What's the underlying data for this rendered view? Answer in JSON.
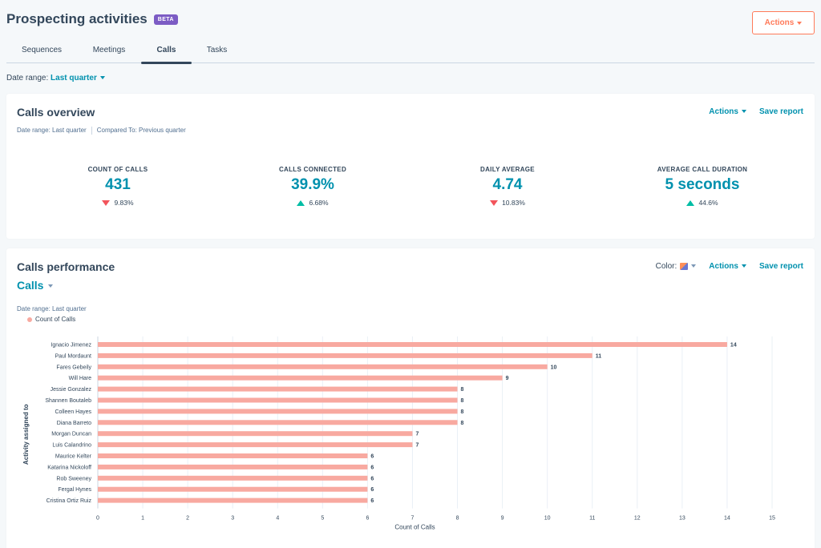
{
  "page": {
    "title": "Prospecting activities",
    "badge": "BETA",
    "actions_label": "Actions",
    "tabs": [
      "Sequences",
      "Meetings",
      "Calls",
      "Tasks"
    ],
    "active_tab": "Calls",
    "date_range_label": "Date range:",
    "date_range_value": "Last quarter"
  },
  "overview": {
    "title": "Calls overview",
    "actions_label": "Actions",
    "save_label": "Save report",
    "meta_range": "Date range: Last quarter",
    "meta_compare": "Compared To: Previous quarter",
    "kpis": [
      {
        "label": "COUNT OF CALLS",
        "value": "431",
        "change": "9.83%",
        "direction": "down"
      },
      {
        "label": "CALLS CONNECTED",
        "value": "39.9%",
        "change": "6.68%",
        "direction": "up"
      },
      {
        "label": "DAILY AVERAGE",
        "value": "4.74",
        "change": "10.83%",
        "direction": "down"
      },
      {
        "label": "AVERAGE CALL DURATION",
        "value": "5 seconds",
        "change": "44.6%",
        "direction": "up"
      }
    ]
  },
  "performance": {
    "title": "Calls performance",
    "color_label": "Color:",
    "actions_label": "Actions",
    "save_label": "Save report",
    "metric_dropdown": "Calls",
    "meta_range": "Date range: Last quarter",
    "legend_label": "Count of Calls"
  },
  "colors": {
    "accent": "#0091ae",
    "bar": "#f8a9a0",
    "legend_dot": "#f8a9a0",
    "up": "#00bda5",
    "down": "#f2545b"
  },
  "chart_data": {
    "type": "bar",
    "orientation": "horizontal",
    "title": "",
    "xlabel": "Count of Calls",
    "ylabel": "Activity assigned to",
    "xlim": [
      0,
      15
    ],
    "xticks": [
      0,
      1,
      2,
      3,
      4,
      5,
      6,
      7,
      8,
      9,
      10,
      11,
      12,
      13,
      14,
      15
    ],
    "grid": true,
    "legend": [
      "Count of Calls"
    ],
    "categories": [
      "Ignacio Jimenez",
      "Paul Mordaunt",
      "Fares Gebeily",
      "Will Hare",
      "Jessie Gonzalez",
      "Shannen Boutaleb",
      "Colleen Hayes",
      "Diana Barreto",
      "Morgan Duncan",
      "Luis Calandrino",
      "Maurice Kelter",
      "Katarina Nickoloff",
      "Rob Sweeney",
      "Fergal Hynes",
      "Cristina Ortiz Ruiz"
    ],
    "values": [
      14,
      11,
      10,
      9,
      8,
      8,
      8,
      8,
      7,
      7,
      6,
      6,
      6,
      6,
      6
    ]
  }
}
